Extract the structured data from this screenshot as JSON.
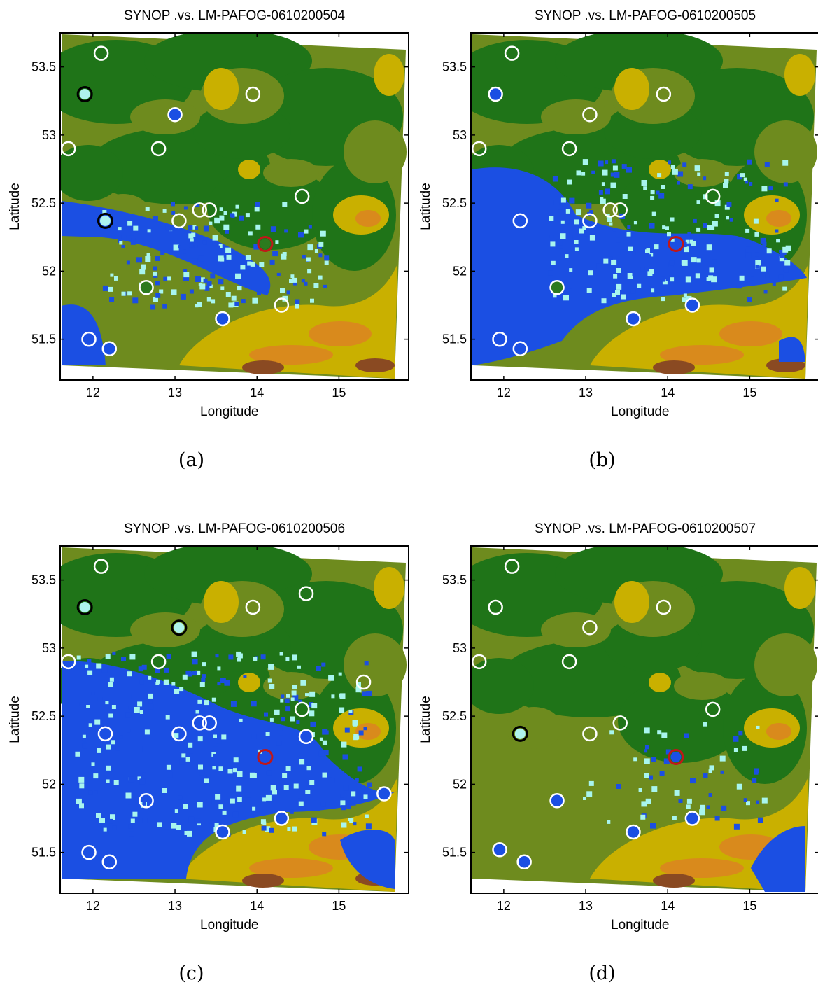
{
  "panels": [
    {
      "title": "SYNOP .vs. LM-PAFOG-0610200504",
      "caption": "(a)",
      "fog_level": "low",
      "stations": [
        {
          "lon": 12.1,
          "lat": 53.6,
          "fill": "none"
        },
        {
          "lon": 11.9,
          "lat": 53.3,
          "fill": "#aef3ee",
          "stroke": "#000000"
        },
        {
          "lon": 13.95,
          "lat": 53.3,
          "fill": "none"
        },
        {
          "lon": 13.0,
          "lat": 53.15,
          "fill": "#1b4fe3"
        },
        {
          "lon": 11.7,
          "lat": 52.9,
          "fill": "none"
        },
        {
          "lon": 12.8,
          "lat": 52.9,
          "fill": "none"
        },
        {
          "lon": 14.55,
          "lat": 52.55,
          "fill": "none"
        },
        {
          "lon": 13.3,
          "lat": 52.45,
          "fill": "none"
        },
        {
          "lon": 13.42,
          "lat": 52.45,
          "fill": "none"
        },
        {
          "lon": 12.15,
          "lat": 52.37,
          "fill": "#aef3ee",
          "stroke": "#000000"
        },
        {
          "lon": 13.05,
          "lat": 52.37,
          "fill": "none"
        },
        {
          "lon": 14.1,
          "lat": 52.2,
          "fill": "#2c7a1e",
          "stroke": "#c01818"
        },
        {
          "lon": 12.65,
          "lat": 51.88,
          "fill": "#2c7a1e"
        },
        {
          "lon": 14.3,
          "lat": 51.75,
          "fill": "none"
        },
        {
          "lon": 13.58,
          "lat": 51.65,
          "fill": "#1b4fe3"
        },
        {
          "lon": 11.95,
          "lat": 51.5,
          "fill": "none"
        },
        {
          "lon": 12.2,
          "lat": 51.43,
          "fill": "#1b4fe3"
        }
      ]
    },
    {
      "title": "SYNOP .vs. LM-PAFOG-0610200505",
      "caption": "(b)",
      "fog_level": "high",
      "stations": [
        {
          "lon": 12.1,
          "lat": 53.6,
          "fill": "none"
        },
        {
          "lon": 11.9,
          "lat": 53.3,
          "fill": "#1b4fe3"
        },
        {
          "lon": 13.95,
          "lat": 53.3,
          "fill": "none"
        },
        {
          "lon": 13.05,
          "lat": 53.15,
          "fill": "none"
        },
        {
          "lon": 11.7,
          "lat": 52.9,
          "fill": "none"
        },
        {
          "lon": 12.8,
          "lat": 52.9,
          "fill": "none"
        },
        {
          "lon": 14.55,
          "lat": 52.55,
          "fill": "none"
        },
        {
          "lon": 13.3,
          "lat": 52.45,
          "fill": "none"
        },
        {
          "lon": 13.42,
          "lat": 52.45,
          "fill": "none"
        },
        {
          "lon": 12.2,
          "lat": 52.37,
          "fill": "none"
        },
        {
          "lon": 13.05,
          "lat": 52.37,
          "fill": "none"
        },
        {
          "lon": 14.1,
          "lat": 52.2,
          "fill": "none",
          "stroke": "#c01818"
        },
        {
          "lon": 12.65,
          "lat": 51.88,
          "fill": "#2c7a1e"
        },
        {
          "lon": 14.3,
          "lat": 51.75,
          "fill": "#1b4fe3"
        },
        {
          "lon": 13.58,
          "lat": 51.65,
          "fill": "#1b4fe3"
        },
        {
          "lon": 11.95,
          "lat": 51.5,
          "fill": "none"
        },
        {
          "lon": 12.2,
          "lat": 51.43,
          "fill": "none"
        }
      ]
    },
    {
      "title": "SYNOP .vs. LM-PAFOG-0610200506",
      "caption": "(c)",
      "fog_level": "highest",
      "stations": [
        {
          "lon": 12.1,
          "lat": 53.6,
          "fill": "none"
        },
        {
          "lon": 11.9,
          "lat": 53.3,
          "fill": "#aef3ee",
          "stroke": "#000000"
        },
        {
          "lon": 13.05,
          "lat": 53.15,
          "fill": "#aef3ee",
          "stroke": "#000000"
        },
        {
          "lon": 13.95,
          "lat": 53.3,
          "fill": "none"
        },
        {
          "lon": 14.6,
          "lat": 53.4,
          "fill": "none"
        },
        {
          "lon": 11.7,
          "lat": 52.9,
          "fill": "none"
        },
        {
          "lon": 12.8,
          "lat": 52.9,
          "fill": "none"
        },
        {
          "lon": 15.3,
          "lat": 52.75,
          "fill": "none"
        },
        {
          "lon": 14.55,
          "lat": 52.55,
          "fill": "none"
        },
        {
          "lon": 13.3,
          "lat": 52.45,
          "fill": "none"
        },
        {
          "lon": 13.42,
          "lat": 52.45,
          "fill": "none"
        },
        {
          "lon": 12.15,
          "lat": 52.37,
          "fill": "none"
        },
        {
          "lon": 13.05,
          "lat": 52.37,
          "fill": "none"
        },
        {
          "lon": 14.6,
          "lat": 52.35,
          "fill": "#1b4fe3"
        },
        {
          "lon": 14.1,
          "lat": 52.2,
          "fill": "none",
          "stroke": "#c01818"
        },
        {
          "lon": 12.65,
          "lat": 51.88,
          "fill": "none"
        },
        {
          "lon": 15.55,
          "lat": 51.93,
          "fill": "#1b4fe3"
        },
        {
          "lon": 14.3,
          "lat": 51.75,
          "fill": "#1b4fe3"
        },
        {
          "lon": 13.58,
          "lat": 51.65,
          "fill": "#1b4fe3"
        },
        {
          "lon": 11.95,
          "lat": 51.5,
          "fill": "none"
        },
        {
          "lon": 12.2,
          "lat": 51.43,
          "fill": "none"
        }
      ]
    },
    {
      "title": "SYNOP .vs. LM-PAFOG-0610200507",
      "caption": "(d)",
      "fog_level": "none",
      "stations": [
        {
          "lon": 12.1,
          "lat": 53.6,
          "fill": "none"
        },
        {
          "lon": 11.9,
          "lat": 53.3,
          "fill": "none"
        },
        {
          "lon": 13.95,
          "lat": 53.3,
          "fill": "none"
        },
        {
          "lon": 13.05,
          "lat": 53.15,
          "fill": "none"
        },
        {
          "lon": 11.7,
          "lat": 52.9,
          "fill": "none"
        },
        {
          "lon": 12.8,
          "lat": 52.9,
          "fill": "none"
        },
        {
          "lon": 14.55,
          "lat": 52.55,
          "fill": "none"
        },
        {
          "lon": 13.42,
          "lat": 52.45,
          "fill": "none"
        },
        {
          "lon": 12.2,
          "lat": 52.37,
          "fill": "#aef3ee",
          "stroke": "#000000"
        },
        {
          "lon": 13.05,
          "lat": 52.37,
          "fill": "none"
        },
        {
          "lon": 14.1,
          "lat": 52.2,
          "fill": "#1b4fe3",
          "stroke": "#c01818"
        },
        {
          "lon": 12.65,
          "lat": 51.88,
          "fill": "#1b4fe3"
        },
        {
          "lon": 14.3,
          "lat": 51.75,
          "fill": "#1b4fe3"
        },
        {
          "lon": 13.58,
          "lat": 51.65,
          "fill": "#1b4fe3"
        },
        {
          "lon": 11.95,
          "lat": 51.52,
          "fill": "#1b4fe3"
        },
        {
          "lon": 12.25,
          "lat": 51.43,
          "fill": "#1b4fe3"
        }
      ]
    }
  ],
  "axes": {
    "xlabel": "Longitude",
    "ylabel": "Latitude",
    "xticks": [
      "12",
      "13",
      "14",
      "15"
    ],
    "yticks": [
      "53.5",
      "53",
      "52.5",
      "52",
      "51.5"
    ],
    "xlim": [
      11.6,
      15.85
    ],
    "ylim": [
      51.2,
      53.75
    ]
  },
  "colors": {
    "dark_green": "#1f7418",
    "olive": "#6e8b1e",
    "yellow": "#c9b000",
    "orange": "#d98a1c",
    "brown": "#8a4a22",
    "fog_blue": "#1b4fe3",
    "fog_cyan": "#a8f5ee",
    "station_ring": "#ffffff",
    "station_hit": "#c01818"
  }
}
